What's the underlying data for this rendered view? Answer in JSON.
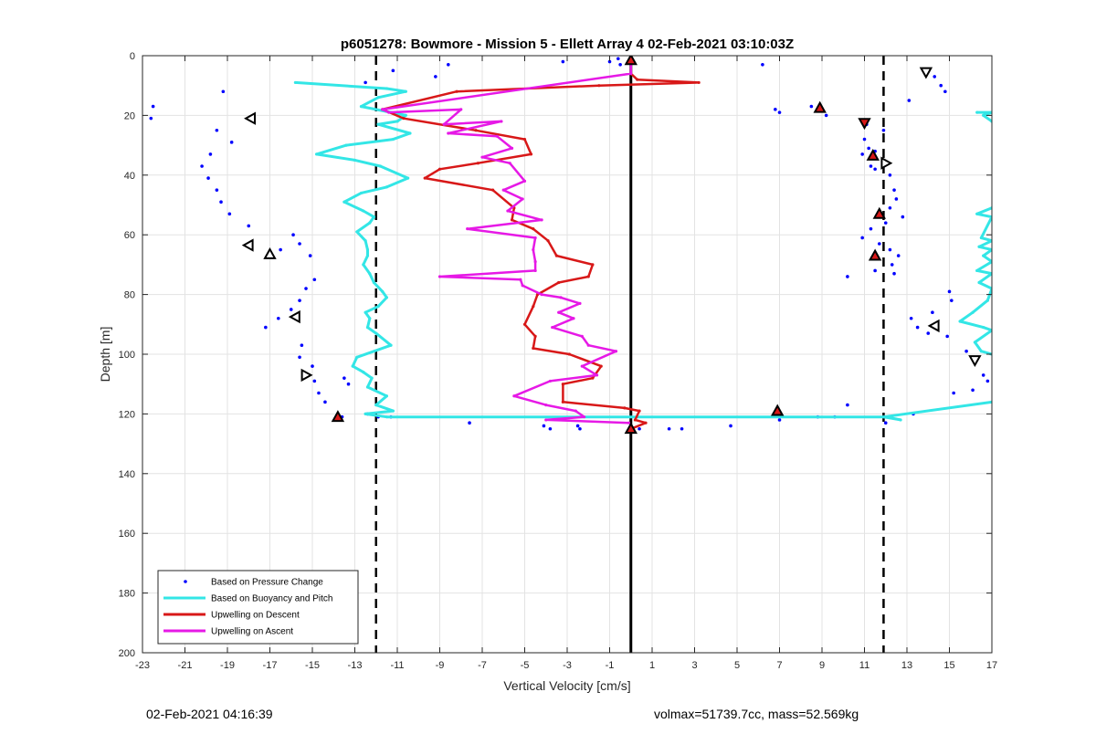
{
  "chart_data": {
    "type": "scatter",
    "title": "p6051278: Bowmore - Mission 5 - Ellett Array 4 02-Feb-2021 03:10:03Z",
    "xlabel": "Vertical Velocity [cm/s]",
    "ylabel": "Depth [m]",
    "xlim": [
      -23,
      17
    ],
    "ylim": [
      0,
      200
    ],
    "y_reversed": true,
    "grid": true,
    "legend_placement": "bottom-left",
    "xticks": [
      -23,
      -21,
      -19,
      -17,
      -15,
      -13,
      -11,
      -9,
      -7,
      -5,
      -3,
      -1,
      1,
      3,
      5,
      7,
      9,
      11,
      13,
      15,
      17
    ],
    "yticks": [
      0,
      20,
      40,
      60,
      80,
      100,
      120,
      140,
      160,
      180,
      200
    ],
    "reference_lines": {
      "solid_x": 0,
      "dashed_x": [
        -12,
        11.9
      ],
      "colors": {
        "solid": "#000000",
        "dashed": "#000000"
      }
    },
    "series": [
      {
        "name": "Based on Pressure Change",
        "style": "dots",
        "color": "#0000ff",
        "points": [
          [
            -22.5,
            17
          ],
          [
            -22.6,
            21
          ],
          [
            -19.2,
            12
          ],
          [
            -19.5,
            25
          ],
          [
            -18.8,
            29
          ],
          [
            -19.8,
            33
          ],
          [
            -20.2,
            37
          ],
          [
            -19.9,
            41
          ],
          [
            -19.5,
            45
          ],
          [
            -19.3,
            49
          ],
          [
            -18.9,
            53
          ],
          [
            -18.0,
            57
          ],
          [
            -15.9,
            60
          ],
          [
            -16.5,
            65
          ],
          [
            -15.6,
            63
          ],
          [
            -15.1,
            67
          ],
          [
            -14.9,
            75
          ],
          [
            -15.3,
            78
          ],
          [
            -15.6,
            82
          ],
          [
            -16.0,
            85
          ],
          [
            -16.6,
            88
          ],
          [
            -17.2,
            91
          ],
          [
            -15.5,
            97
          ],
          [
            -15.6,
            101
          ],
          [
            -15.0,
            104
          ],
          [
            -14.9,
            109
          ],
          [
            -13.5,
            108
          ],
          [
            -13.3,
            110
          ],
          [
            -14.7,
            113
          ],
          [
            -14.4,
            116
          ],
          [
            -13.6,
            121
          ],
          [
            -12.4,
            120
          ],
          [
            -11.9,
            121
          ],
          [
            -11.3,
            121
          ],
          [
            -12.5,
            9
          ],
          [
            -11.2,
            5
          ],
          [
            -8.6,
            3
          ],
          [
            -9.2,
            7
          ],
          [
            -3.2,
            2
          ],
          [
            -1.0,
            2
          ],
          [
            -0.6,
            1
          ],
          [
            -0.5,
            3
          ],
          [
            -7.6,
            123
          ],
          [
            -4.1,
            124
          ],
          [
            -3.8,
            125
          ],
          [
            -2.5,
            124
          ],
          [
            -2.4,
            125
          ],
          [
            0.4,
            125
          ],
          [
            1.8,
            125
          ],
          [
            2.4,
            125
          ],
          [
            4.7,
            124
          ],
          [
            7.0,
            122
          ],
          [
            6.2,
            3
          ],
          [
            6.8,
            18
          ],
          [
            7.0,
            19
          ],
          [
            8.5,
            17
          ],
          [
            9.2,
            20
          ],
          [
            11.1,
            23
          ],
          [
            11.9,
            25
          ],
          [
            11.0,
            28
          ],
          [
            11.2,
            31
          ],
          [
            10.9,
            33
          ],
          [
            11.5,
            32
          ],
          [
            11.3,
            37
          ],
          [
            11.5,
            38
          ],
          [
            11.9,
            37
          ],
          [
            12.2,
            40
          ],
          [
            12.4,
            45
          ],
          [
            12.5,
            48
          ],
          [
            12.2,
            51
          ],
          [
            11.7,
            52
          ],
          [
            12.8,
            54
          ],
          [
            12.0,
            56
          ],
          [
            11.3,
            58
          ],
          [
            10.9,
            61
          ],
          [
            11.7,
            63
          ],
          [
            12.2,
            65
          ],
          [
            12.6,
            67
          ],
          [
            12.3,
            70
          ],
          [
            11.5,
            72
          ],
          [
            10.2,
            74
          ],
          [
            12.4,
            73
          ],
          [
            13.9,
            5
          ],
          [
            14.3,
            7
          ],
          [
            14.6,
            10
          ],
          [
            14.8,
            12
          ],
          [
            13.1,
            15
          ],
          [
            15.0,
            79
          ],
          [
            15.1,
            82
          ],
          [
            14.2,
            86
          ],
          [
            13.2,
            88
          ],
          [
            13.5,
            91
          ],
          [
            14.0,
            93
          ],
          [
            14.9,
            94
          ],
          [
            15.8,
            99
          ],
          [
            16.6,
            107
          ],
          [
            16.8,
            109
          ],
          [
            16.1,
            112
          ],
          [
            15.2,
            113
          ],
          [
            13.3,
            120
          ],
          [
            12.0,
            123
          ],
          [
            10.2,
            117
          ],
          [
            9.6,
            121
          ],
          [
            8.8,
            121
          ]
        ]
      },
      {
        "name": "Based on Buoyancy and Pitch",
        "style": "line",
        "color": "#33e6e6",
        "points": [
          [
            -15.8,
            9
          ],
          [
            -11.5,
            11
          ],
          [
            -10.6,
            12
          ],
          [
            -11.9,
            14
          ],
          [
            -12.7,
            17
          ],
          [
            -10.6,
            20
          ],
          [
            -11.0,
            22
          ],
          [
            -11.9,
            23
          ],
          [
            -10.4,
            26
          ],
          [
            -11.2,
            28
          ],
          [
            -13.4,
            30
          ],
          [
            -14.8,
            33
          ],
          [
            -13.0,
            35
          ],
          [
            -11.8,
            37
          ],
          [
            -10.5,
            41
          ],
          [
            -11.5,
            44
          ],
          [
            -12.7,
            46
          ],
          [
            -13.5,
            49
          ],
          [
            -12.6,
            52
          ],
          [
            -12.1,
            54
          ],
          [
            -12.3,
            56
          ],
          [
            -12.9,
            59
          ],
          [
            -12.5,
            62
          ],
          [
            -12.4,
            65
          ],
          [
            -12.4,
            67
          ],
          [
            -12.6,
            70
          ],
          [
            -12.3,
            73
          ],
          [
            -12.1,
            76
          ],
          [
            -11.7,
            79
          ],
          [
            -11.5,
            81
          ],
          [
            -11.9,
            84
          ],
          [
            -12.5,
            86
          ],
          [
            -12.3,
            88
          ],
          [
            -12.4,
            91
          ],
          [
            -12.0,
            93
          ],
          [
            -11.3,
            97
          ],
          [
            -12.9,
            101
          ],
          [
            -13.1,
            104
          ],
          [
            -12.6,
            106
          ],
          [
            -12.2,
            108
          ],
          [
            -12.4,
            111
          ],
          [
            -11.5,
            114
          ],
          [
            -12.0,
            117
          ],
          [
            -11.2,
            119
          ],
          [
            -12.5,
            120
          ],
          [
            -11.5,
            121
          ],
          [
            12.0,
            121
          ],
          [
            12.7,
            122
          ],
          [
            11.9,
            121
          ],
          [
            17.0,
            116
          ]
        ]
      },
      {
        "name": "",
        "style": "line",
        "color": "#33e6e6",
        "points": [
          [
            16.3,
            19
          ],
          [
            17.0,
            19
          ],
          [
            16.6,
            20
          ],
          [
            17.0,
            22
          ]
        ]
      },
      {
        "name": "",
        "style": "line",
        "color": "#33e6e6",
        "points": [
          [
            17.0,
            51
          ],
          [
            16.3,
            53
          ],
          [
            17.0,
            54
          ],
          [
            16.5,
            61
          ],
          [
            17.0,
            62
          ],
          [
            16.4,
            64
          ],
          [
            17.0,
            65
          ],
          [
            16.6,
            67
          ],
          [
            17.0,
            69
          ],
          [
            16.3,
            72
          ],
          [
            17.0,
            73
          ],
          [
            16.4,
            76
          ],
          [
            17.0,
            78
          ],
          [
            16.8,
            82
          ],
          [
            16.1,
            86
          ],
          [
            15.5,
            89
          ],
          [
            16.6,
            91
          ],
          [
            17.0,
            92
          ],
          [
            16.2,
            96
          ],
          [
            16.5,
            99
          ],
          [
            17.0,
            100
          ]
        ]
      },
      {
        "name": "Upwelling on Descent",
        "style": "line",
        "color": "#d81818",
        "points": [
          [
            0.0,
            2
          ],
          [
            0.0,
            6
          ],
          [
            0.3,
            8
          ],
          [
            3.2,
            9
          ],
          [
            -1.5,
            10
          ],
          [
            -8.2,
            12
          ],
          [
            -11.7,
            18
          ],
          [
            -10.7,
            21
          ],
          [
            -7.3,
            25
          ],
          [
            -5.0,
            28
          ],
          [
            -4.7,
            33
          ],
          [
            -7.2,
            36
          ],
          [
            -9.0,
            38
          ],
          [
            -9.7,
            41
          ],
          [
            -6.5,
            45
          ],
          [
            -5.5,
            51
          ],
          [
            -5.6,
            55
          ],
          [
            -4.6,
            58
          ],
          [
            -3.9,
            62
          ],
          [
            -3.5,
            67
          ],
          [
            -1.8,
            70
          ],
          [
            -2.0,
            74
          ],
          [
            -3.4,
            76
          ],
          [
            -4.4,
            80
          ],
          [
            -4.6,
            84
          ],
          [
            -5.0,
            90
          ],
          [
            -4.5,
            94
          ],
          [
            -4.6,
            98
          ],
          [
            -2.9,
            100
          ],
          [
            -1.4,
            104
          ],
          [
            -1.8,
            108
          ],
          [
            -3.2,
            110
          ],
          [
            -3.2,
            116
          ],
          [
            -0.3,
            118
          ],
          [
            0.4,
            119
          ],
          [
            0.2,
            122
          ],
          [
            0.7,
            123
          ],
          [
            0.0,
            125
          ]
        ]
      },
      {
        "name": "Upwelling on Ascent",
        "style": "line",
        "color": "#e619e6",
        "points": [
          [
            0.0,
            2
          ],
          [
            0.0,
            6
          ],
          [
            -11.7,
            18
          ],
          [
            -11.4,
            19
          ],
          [
            -8.0,
            18
          ],
          [
            -8.8,
            23
          ],
          [
            -6.1,
            22
          ],
          [
            -8.6,
            26
          ],
          [
            -6.3,
            27
          ],
          [
            -5.6,
            31
          ],
          [
            -7.0,
            34
          ],
          [
            -5.7,
            36
          ],
          [
            -5.0,
            42
          ],
          [
            -6.0,
            45
          ],
          [
            -5.1,
            48
          ],
          [
            -5.8,
            52
          ],
          [
            -4.2,
            55
          ],
          [
            -7.7,
            58
          ],
          [
            -4.5,
            61
          ],
          [
            -4.6,
            65
          ],
          [
            -4.5,
            69
          ],
          [
            -4.5,
            72
          ],
          [
            -9.0,
            74
          ],
          [
            -5.2,
            75
          ],
          [
            -5.1,
            77
          ],
          [
            -4.2,
            80
          ],
          [
            -3.3,
            81
          ],
          [
            -2.4,
            83
          ],
          [
            -3.4,
            86
          ],
          [
            -2.7,
            88
          ],
          [
            -3.7,
            91
          ],
          [
            -2.3,
            94
          ],
          [
            -2.0,
            97
          ],
          [
            -0.7,
            99
          ],
          [
            -2.3,
            104
          ],
          [
            -1.6,
            107
          ],
          [
            -3.8,
            109
          ],
          [
            -5.5,
            114
          ],
          [
            -4.0,
            117
          ],
          [
            -2.6,
            119
          ],
          [
            -2.2,
            121
          ],
          [
            -4.0,
            122
          ],
          [
            -0.1,
            123
          ]
        ]
      },
      {
        "name": "",
        "style": "markers",
        "markers": [
          {
            "x": 0.0,
            "y": 1.5,
            "shape": "up",
            "fill": "#d81818"
          },
          {
            "x": 8.9,
            "y": 17.5,
            "shape": "up",
            "fill": "#d81818"
          },
          {
            "x": 11.0,
            "y": 22.5,
            "shape": "down",
            "fill": "#d81818"
          },
          {
            "x": 11.4,
            "y": 33.5,
            "shape": "up",
            "fill": "#d81818"
          },
          {
            "x": 11.7,
            "y": 53,
            "shape": "up",
            "fill": "#d81818"
          },
          {
            "x": 11.5,
            "y": 67,
            "shape": "up",
            "fill": "#d81818"
          },
          {
            "x": -13.8,
            "y": 121,
            "shape": "up",
            "fill": "#d81818"
          },
          {
            "x": 6.9,
            "y": 119,
            "shape": "up",
            "fill": "#d81818"
          },
          {
            "x": 0.0,
            "y": 125,
            "shape": "up",
            "fill": "#d81818"
          },
          {
            "x": 13.9,
            "y": 5.5,
            "shape": "down",
            "fill": "#ffffff"
          },
          {
            "x": -17.9,
            "y": 21,
            "shape": "left",
            "fill": "#ffffff"
          },
          {
            "x": 12.0,
            "y": 36,
            "shape": "right",
            "fill": "#ffffff"
          },
          {
            "x": -18.0,
            "y": 63.5,
            "shape": "left",
            "fill": "#ffffff"
          },
          {
            "x": -17.0,
            "y": 66.5,
            "shape": "up",
            "fill": "#ffffff"
          },
          {
            "x": -15.8,
            "y": 87.5,
            "shape": "left",
            "fill": "#ffffff"
          },
          {
            "x": 14.3,
            "y": 90.5,
            "shape": "left",
            "fill": "#ffffff"
          },
          {
            "x": 16.2,
            "y": 102,
            "shape": "down",
            "fill": "#ffffff"
          },
          {
            "x": -15.3,
            "y": 107,
            "shape": "right",
            "fill": "#ffffff"
          }
        ]
      }
    ]
  },
  "footer": {
    "left": "02-Feb-2021 04:16:39",
    "right": "volmax=51739.7cc, mass=52.569kg"
  }
}
